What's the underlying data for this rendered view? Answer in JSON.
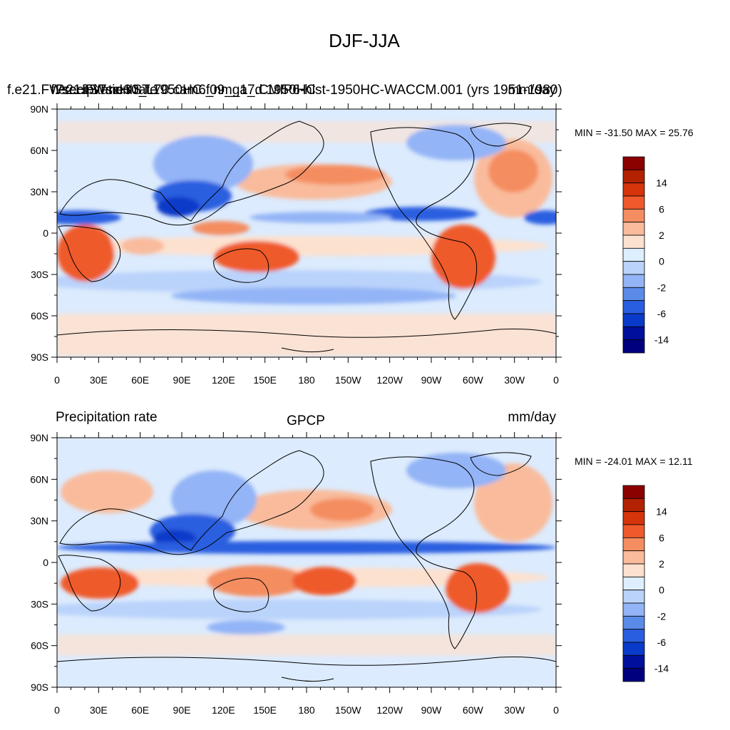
{
  "figure": {
    "title": "DJF-JJA"
  },
  "panels": [
    {
      "left_label": "Precipitation rate",
      "left_overlay": "f.e21.FWscHIST.ne30_L70.cam6_nm_a_d.1950HC",
      "center_label": "f.e21.FWscHIST.1950HC.f09_g17.CMIP6-hist-1950HC-WACCM.001 (yrs 1951-1980)",
      "right_label": "mm/day",
      "stats": "MIN = -31.50 MAX =  25.76"
    },
    {
      "left_label": "Precipitation rate",
      "center_label": "GPCP",
      "right_label": "mm/day",
      "stats": "MIN = -24.01 MAX =  12.11"
    }
  ],
  "axes": {
    "lat_ticks": [
      "90N",
      "60N",
      "30N",
      "0",
      "30S",
      "60S",
      "90S"
    ],
    "lon_ticks": [
      "0",
      "30E",
      "60E",
      "90E",
      "120E",
      "150E",
      "180",
      "150W",
      "120W",
      "90W",
      "60W",
      "30W",
      "0"
    ]
  },
  "colorbar": {
    "labels": [
      "14",
      "6",
      "2",
      "0",
      "-2",
      "-6",
      "-14"
    ],
    "colors": [
      "#8b0000",
      "#b22200",
      "#d6340b",
      "#ef5a2c",
      "#f48d61",
      "#f9bb9b",
      "#fde1cf",
      "#ddeeff",
      "#bad3fb",
      "#93b4f6",
      "#5b8be8",
      "#2a5ee0",
      "#0a3ac9",
      "#000f9c",
      "#00007f"
    ]
  },
  "colors": {
    "background_field": "#dcebfd",
    "coast": "#000000"
  }
}
